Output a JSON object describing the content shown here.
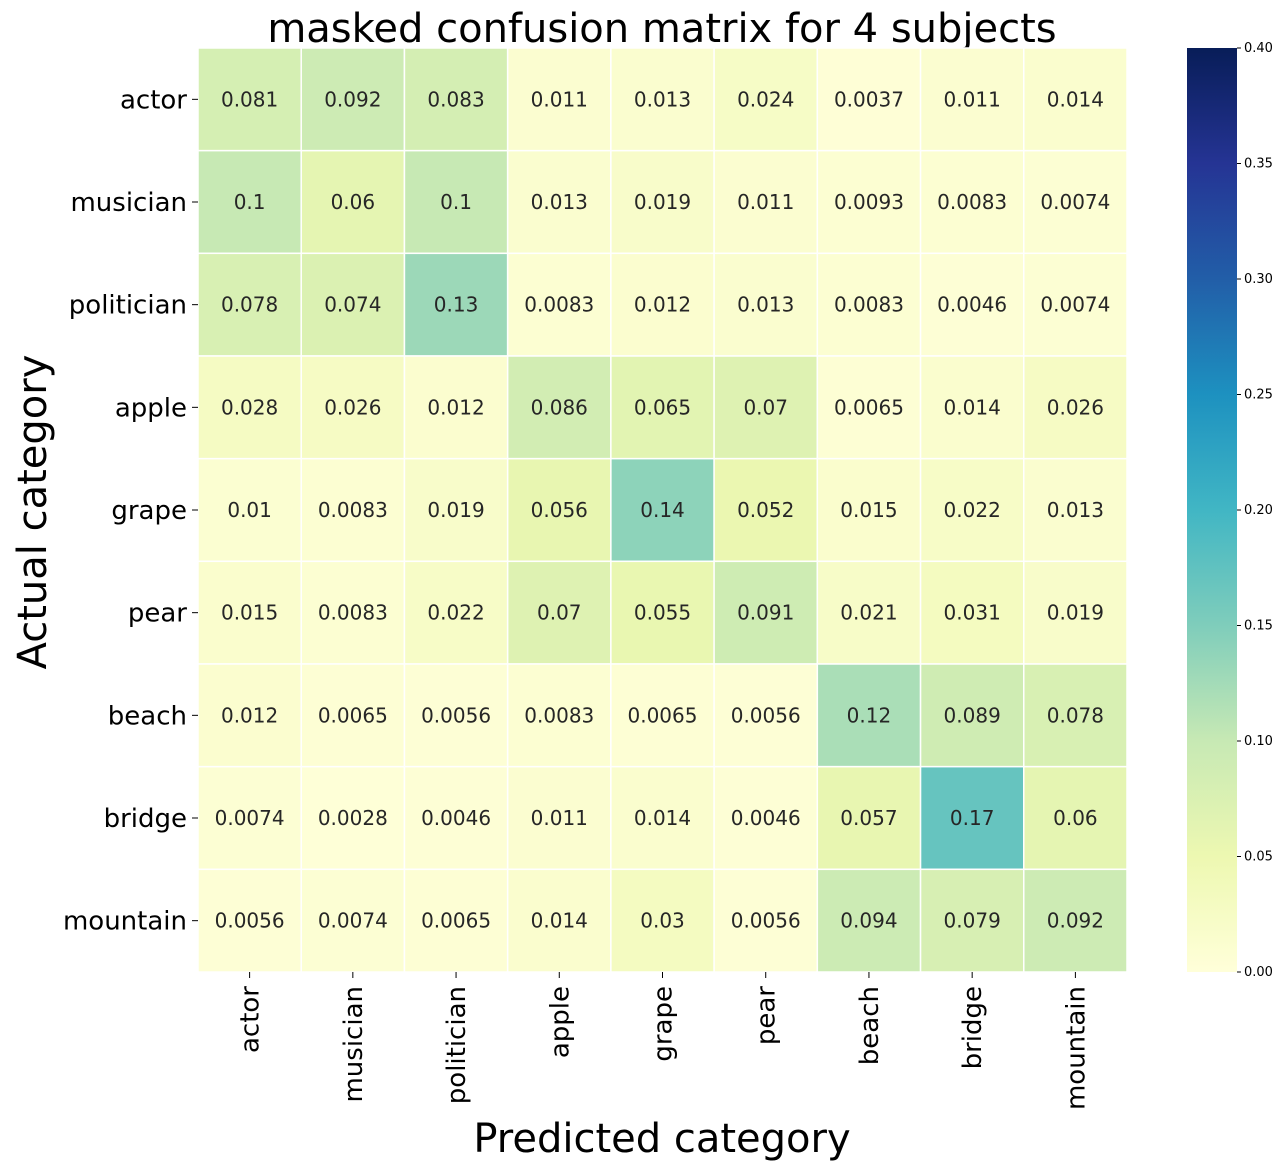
{
  "chart_data": {
    "type": "heatmap",
    "title": "masked confusion matrix for 4 subjects",
    "xlabel": "Predicted category",
    "ylabel": "Actual category",
    "x_categories": [
      "actor",
      "musician",
      "politician",
      "apple",
      "grape",
      "pear",
      "beach",
      "bridge",
      "mountain"
    ],
    "y_categories": [
      "actor",
      "musician",
      "politician",
      "apple",
      "grape",
      "pear",
      "beach",
      "bridge",
      "mountain"
    ],
    "values": [
      [
        0.081,
        0.092,
        0.083,
        0.011,
        0.013,
        0.024,
        0.0037,
        0.011,
        0.014
      ],
      [
        0.1,
        0.06,
        0.1,
        0.013,
        0.019,
        0.011,
        0.0093,
        0.0083,
        0.0074
      ],
      [
        0.078,
        0.074,
        0.13,
        0.0083,
        0.012,
        0.013,
        0.0083,
        0.0046,
        0.0074
      ],
      [
        0.028,
        0.026,
        0.012,
        0.086,
        0.065,
        0.07,
        0.0065,
        0.014,
        0.026
      ],
      [
        0.01,
        0.0083,
        0.019,
        0.056,
        0.14,
        0.052,
        0.015,
        0.022,
        0.013
      ],
      [
        0.015,
        0.0083,
        0.022,
        0.07,
        0.055,
        0.091,
        0.021,
        0.031,
        0.019
      ],
      [
        0.012,
        0.0065,
        0.0056,
        0.0083,
        0.0065,
        0.0056,
        0.12,
        0.089,
        0.078
      ],
      [
        0.0074,
        0.0028,
        0.0046,
        0.011,
        0.014,
        0.0046,
        0.057,
        0.17,
        0.06
      ],
      [
        0.0056,
        0.0074,
        0.0065,
        0.014,
        0.03,
        0.0056,
        0.094,
        0.079,
        0.092
      ]
    ],
    "labels": [
      [
        "0.081",
        "0.092",
        "0.083",
        "0.011",
        "0.013",
        "0.024",
        "0.0037",
        "0.011",
        "0.014"
      ],
      [
        "0.1",
        "0.06",
        "0.1",
        "0.013",
        "0.019",
        "0.011",
        "0.0093",
        "0.0083",
        "0.0074"
      ],
      [
        "0.078",
        "0.074",
        "0.13",
        "0.0083",
        "0.012",
        "0.013",
        "0.0083",
        "0.0046",
        "0.0074"
      ],
      [
        "0.028",
        "0.026",
        "0.012",
        "0.086",
        "0.065",
        "0.07",
        "0.0065",
        "0.014",
        "0.026"
      ],
      [
        "0.01",
        "0.0083",
        "0.019",
        "0.056",
        "0.14",
        "0.052",
        "0.015",
        "0.022",
        "0.013"
      ],
      [
        "0.015",
        "0.0083",
        "0.022",
        "0.07",
        "0.055",
        "0.091",
        "0.021",
        "0.031",
        "0.019"
      ],
      [
        "0.012",
        "0.0065",
        "0.0056",
        "0.0083",
        "0.0065",
        "0.0056",
        "0.12",
        "0.089",
        "0.078"
      ],
      [
        "0.0074",
        "0.0028",
        "0.0046",
        "0.011",
        "0.014",
        "0.0046",
        "0.057",
        "0.17",
        "0.06"
      ],
      [
        "0.0056",
        "0.0074",
        "0.0065",
        "0.014",
        "0.03",
        "0.0056",
        "0.094",
        "0.079",
        "0.092"
      ]
    ],
    "colorbar": {
      "vmin": 0.0,
      "vmax": 0.4,
      "ticks": [
        0.0,
        0.05,
        0.1,
        0.15,
        0.2,
        0.25,
        0.3,
        0.35,
        0.4
      ],
      "tick_labels": [
        "0.00",
        "0.05",
        "0.10",
        "0.15",
        "0.20",
        "0.25",
        "0.30",
        "0.35",
        "0.40"
      ],
      "colormap": "YlGnBu",
      "colormap_stops": [
        "#ffffd9",
        "#edf8b1",
        "#c7e9b4",
        "#7fcdbb",
        "#41b6c4",
        "#1d91c0",
        "#225ea8",
        "#253494",
        "#081d58"
      ]
    },
    "cell_separator_color": "#ffffff",
    "annotation_color": "#262626",
    "grid": false
  }
}
